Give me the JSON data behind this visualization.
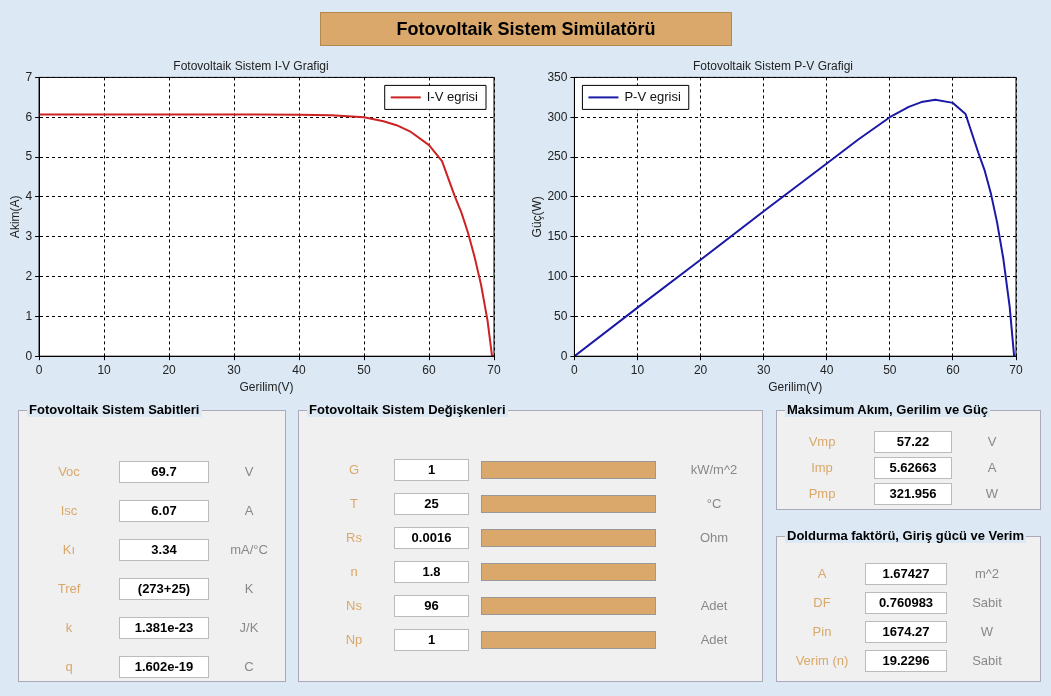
{
  "chart_data": [
    {
      "type": "other",
      "title": "Fotovoltaik Sistem Simülatörü"
    },
    {
      "type": "line",
      "title": "Fotovoltaik Sistem I-V Grafigi",
      "xlabel": "Gerilim(V)",
      "ylabel": "Akim(A)",
      "xlim": [
        0,
        70
      ],
      "xticks": [
        0,
        10,
        20,
        30,
        40,
        50,
        60,
        70
      ],
      "ylim": [
        0,
        7
      ],
      "yticks": [
        0,
        1,
        2,
        3,
        4,
        5,
        6,
        7
      ],
      "grid": true,
      "legend": "top right",
      "marker": "none",
      "line_style": "solid",
      "series": [
        {
          "name": "I-V egrisi",
          "color": "#cc2222",
          "x": [
            0,
            10,
            20,
            30,
            40,
            45,
            50,
            53,
            55,
            57.22,
            60,
            62,
            64,
            65,
            66,
            67,
            68,
            69,
            69.7
          ],
          "values": [
            6.07,
            6.07,
            6.07,
            6.07,
            6.06,
            6.05,
            6.0,
            5.9,
            5.8,
            5.63,
            5.3,
            4.9,
            4.0,
            3.6,
            3.1,
            2.5,
            1.8,
            0.9,
            0
          ]
        }
      ]
    },
    {
      "type": "line",
      "title": "Fotovoltaik Sistem P-V Grafigi",
      "xlabel": "Gerilim(V)",
      "ylabel": "Güç(W)",
      "xlim": [
        0,
        70
      ],
      "xticks": [
        0,
        10,
        20,
        30,
        40,
        50,
        60,
        70
      ],
      "ylim": [
        0,
        350
      ],
      "yticks": [
        0,
        50,
        100,
        150,
        200,
        250,
        300,
        350
      ],
      "grid": true,
      "legend": "top left",
      "marker": "none",
      "line_style": "solid",
      "series": [
        {
          "name": "P-V egrisi",
          "color": "#1a1aa6",
          "x": [
            0,
            10,
            20,
            30,
            40,
            45,
            50,
            53,
            55,
            57.22,
            60,
            62,
            64,
            65,
            66,
            67,
            68,
            69,
            69.7
          ],
          "values": [
            0,
            61,
            121,
            182,
            242,
            272,
            300,
            313,
            319,
            322,
            318,
            304,
            256,
            234,
            205,
            168,
            122,
            62,
            0
          ]
        }
      ]
    },
    {
      "type": "other",
      "title": "Fotovoltaik Sistem Sabitleri",
      "annotations": [
        "Voc",
        "69.7",
        "V",
        "Isc",
        "6.07",
        "A",
        "Kı",
        "3.34",
        "mA/°C",
        "Tref",
        "(273+25)",
        "K",
        "k",
        "1.381e-23",
        "J/K",
        "q",
        "1.602e-19",
        "C"
      ]
    },
    {
      "type": "other",
      "title": "Fotovoltaik Sistem Değişkenleri",
      "annotations": [
        "G",
        "1",
        "kW/m^2",
        "T",
        "25",
        "°C",
        "Rs",
        "0.0016",
        "Ohm",
        "n",
        "1.8",
        null,
        "Ns",
        "96",
        "Adet",
        "Np",
        "1",
        "Adet"
      ]
    },
    {
      "type": "other",
      "title": "Maksimum Akım, Gerilim ve Güç",
      "annotations": [
        "Vmp",
        "57.22",
        "V",
        "Imp",
        "5.62663",
        "A",
        "Pmp",
        "321.956",
        "W"
      ]
    },
    {
      "type": "other",
      "title": "Doldurma faktörü, Giriş gücü ve Verim",
      "annotations": [
        "A",
        "1.67427",
        "m^2",
        "DF",
        "0.760983",
        "Sabit",
        "Pin",
        "1674.27",
        "W",
        "Verim (n)",
        "19.2296",
        "Sabit"
      ]
    }
  ]
}
